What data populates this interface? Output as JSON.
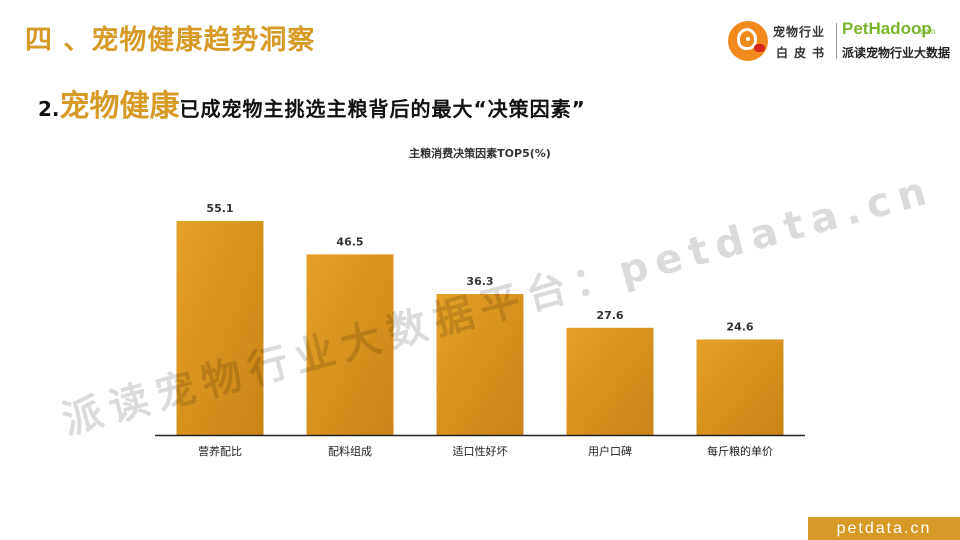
{
  "header": {
    "section_title": "四 、宠物健康趋势洞察"
  },
  "logo": {
    "cn_line1": "宠物行业",
    "cn_line2": "白皮书",
    "brand": "PetHadoop",
    "brand_suffix": ".com",
    "slogan": "派读宠物行业大数据"
  },
  "headline": {
    "number": "2.",
    "highlight": "宠物健康",
    "rest": "已成宠物主挑选主粮背后的最大“决策因素”"
  },
  "watermark": "派读宠物行业大数据平台：petdata.cn",
  "footer": {
    "tag": "petdata.cn"
  },
  "colors": {
    "accent": "#d89a26",
    "bar": "#e39c22",
    "bar_dark": "#c98317"
  },
  "chart_data": {
    "type": "bar",
    "title": "主粮消费决策因素TOP5(%)",
    "categories": [
      "营养配比",
      "配料组成",
      "适口性好坏",
      "用户口碑",
      "每斤粮的单价"
    ],
    "values": [
      55.1,
      46.5,
      36.3,
      27.6,
      24.6
    ],
    "data_labels": [
      "55.1",
      "46.5",
      "36.3",
      "27.6",
      "24.6"
    ],
    "ylim": [
      0,
      55.1
    ],
    "grid": false
  }
}
